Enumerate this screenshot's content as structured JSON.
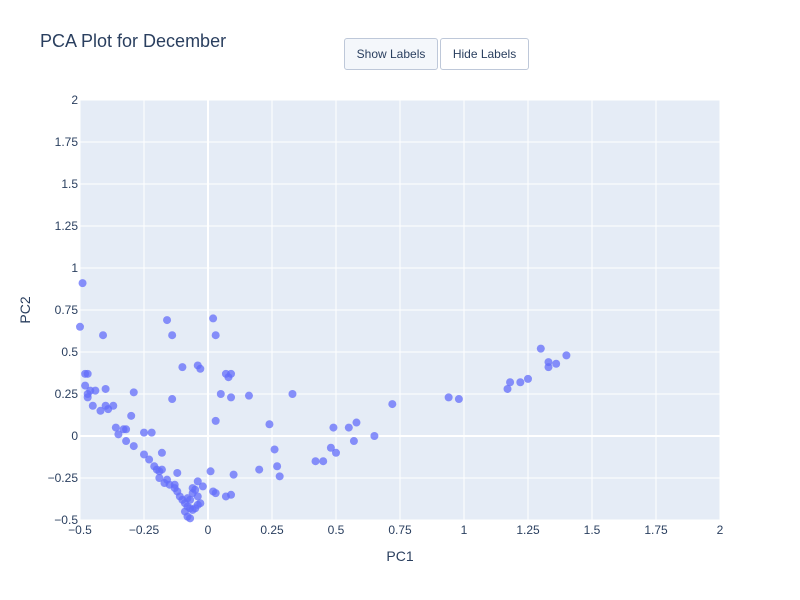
{
  "title": "PCA Plot for December",
  "buttons": {
    "show_labels": "Show Labels",
    "hide_labels": "Hide Labels",
    "active": "show_labels"
  },
  "colors": {
    "plot_bg": "#e5ecf6",
    "grid": "#ffffff",
    "marker": "#636efa",
    "text": "#2a3f5f"
  },
  "chart_data": {
    "type": "scatter",
    "title": "PCA Plot for December",
    "xlabel": "PC1",
    "ylabel": "PC2",
    "xlim": [
      -0.5,
      2
    ],
    "ylim": [
      -0.5,
      2
    ],
    "grid": true,
    "x_ticks": [
      "−0.5",
      "−0.25",
      "0",
      "0.25",
      "0.5",
      "0.75",
      "1",
      "1.25",
      "1.5",
      "1.75",
      "2"
    ],
    "y_ticks": [
      "−0.5",
      "−0.25",
      "0",
      "0.25",
      "0.5",
      "0.75",
      "1",
      "1.25",
      "1.5",
      "1.75",
      "2"
    ],
    "series": [
      {
        "points": [
          [
            -0.49,
            0.91
          ],
          [
            -0.5,
            0.65
          ],
          [
            -0.48,
            0.37
          ],
          [
            -0.47,
            0.37
          ],
          [
            -0.48,
            0.3
          ],
          [
            -0.47,
            0.25
          ],
          [
            -0.47,
            0.23
          ],
          [
            -0.46,
            0.27
          ],
          [
            -0.44,
            0.27
          ],
          [
            -0.45,
            0.18
          ],
          [
            -0.42,
            0.15
          ],
          [
            -0.4,
            0.18
          ],
          [
            -0.39,
            0.16
          ],
          [
            -0.37,
            0.18
          ],
          [
            -0.4,
            0.28
          ],
          [
            -0.41,
            0.6
          ],
          [
            -0.36,
            0.05
          ],
          [
            -0.35,
            0.01
          ],
          [
            -0.33,
            0.04
          ],
          [
            -0.32,
            0.04
          ],
          [
            -0.32,
            -0.03
          ],
          [
            -0.3,
            0.12
          ],
          [
            -0.29,
            0.26
          ],
          [
            -0.29,
            -0.06
          ],
          [
            -0.25,
            0.02
          ],
          [
            -0.22,
            0.02
          ],
          [
            -0.25,
            -0.11
          ],
          [
            -0.23,
            -0.14
          ],
          [
            -0.21,
            -0.18
          ],
          [
            -0.2,
            -0.2
          ],
          [
            -0.19,
            -0.21
          ],
          [
            -0.18,
            -0.2
          ],
          [
            -0.18,
            -0.1
          ],
          [
            -0.19,
            -0.25
          ],
          [
            -0.17,
            -0.28
          ],
          [
            -0.16,
            -0.26
          ],
          [
            -0.15,
            -0.29
          ],
          [
            -0.13,
            -0.29
          ],
          [
            -0.13,
            -0.31
          ],
          [
            -0.12,
            -0.33
          ],
          [
            -0.12,
            -0.22
          ],
          [
            -0.11,
            -0.36
          ],
          [
            -0.1,
            -0.38
          ],
          [
            -0.09,
            -0.4
          ],
          [
            -0.09,
            -0.45
          ],
          [
            -0.08,
            -0.42
          ],
          [
            -0.08,
            -0.37
          ],
          [
            -0.07,
            -0.38
          ],
          [
            -0.07,
            -0.43
          ],
          [
            -0.08,
            -0.48
          ],
          [
            -0.07,
            -0.49
          ],
          [
            -0.06,
            -0.44
          ],
          [
            -0.06,
            -0.34
          ],
          [
            -0.06,
            -0.31
          ],
          [
            -0.05,
            -0.43
          ],
          [
            -0.05,
            -0.32
          ],
          [
            -0.04,
            -0.41
          ],
          [
            -0.04,
            -0.36
          ],
          [
            -0.04,
            -0.27
          ],
          [
            -0.03,
            -0.4
          ],
          [
            -0.02,
            -0.3
          ],
          [
            -0.16,
            0.69
          ],
          [
            -0.14,
            0.6
          ],
          [
            -0.1,
            0.41
          ],
          [
            -0.14,
            0.22
          ],
          [
            -0.04,
            0.42
          ],
          [
            -0.03,
            0.4
          ],
          [
            0.02,
            0.7
          ],
          [
            0.03,
            0.6
          ],
          [
            0.05,
            0.25
          ],
          [
            0.03,
            0.09
          ],
          [
            0.07,
            0.37
          ],
          [
            0.08,
            0.35
          ],
          [
            0.09,
            0.37
          ],
          [
            0.09,
            0.23
          ],
          [
            0.16,
            0.24
          ],
          [
            0.01,
            -0.21
          ],
          [
            0.02,
            -0.33
          ],
          [
            0.03,
            -0.34
          ],
          [
            0.07,
            -0.36
          ],
          [
            0.09,
            -0.35
          ],
          [
            0.1,
            -0.23
          ],
          [
            0.2,
            -0.2
          ],
          [
            0.24,
            0.07
          ],
          [
            0.26,
            -0.08
          ],
          [
            0.27,
            -0.18
          ],
          [
            0.28,
            -0.24
          ],
          [
            0.33,
            0.25
          ],
          [
            0.42,
            -0.15
          ],
          [
            0.45,
            -0.15
          ],
          [
            0.48,
            -0.07
          ],
          [
            0.49,
            0.05
          ],
          [
            0.5,
            -0.1
          ],
          [
            0.55,
            0.05
          ],
          [
            0.57,
            -0.03
          ],
          [
            0.58,
            0.08
          ],
          [
            0.65,
            0.0
          ],
          [
            0.72,
            0.19
          ],
          [
            0.94,
            0.23
          ],
          [
            0.98,
            0.22
          ],
          [
            1.17,
            0.28
          ],
          [
            1.18,
            0.32
          ],
          [
            1.22,
            0.32
          ],
          [
            1.25,
            0.34
          ],
          [
            1.3,
            0.52
          ],
          [
            1.33,
            0.41
          ],
          [
            1.33,
            0.44
          ],
          [
            1.36,
            0.43
          ],
          [
            1.4,
            0.48
          ]
        ]
      }
    ]
  }
}
